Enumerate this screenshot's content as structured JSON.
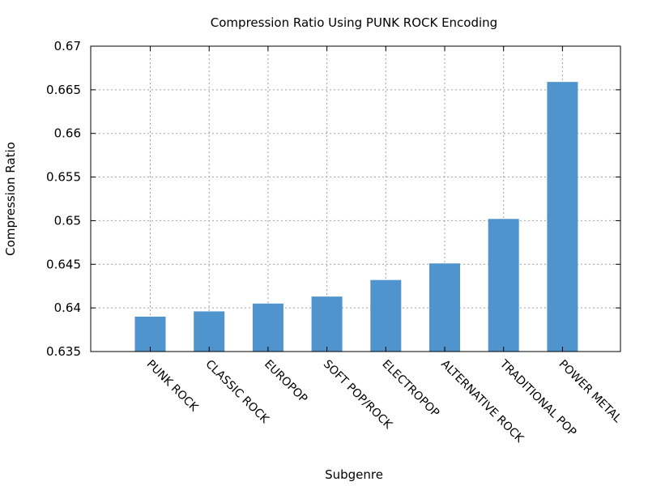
{
  "chart_data": {
    "type": "bar",
    "title": "Compression Ratio Using PUNK ROCK Encoding",
    "xlabel": "Subgenre",
    "ylabel": "Compression Ratio",
    "categories": [
      "PUNK ROCK",
      "CLASSIC ROCK",
      "EUROPOP",
      "SOFT POP/ROCK",
      "ELECTROPOP",
      "ALTERNATIVE ROCK",
      "TRADITIONAL POP",
      "POWER METAL"
    ],
    "values": [
      0.639,
      0.6396,
      0.6405,
      0.6413,
      0.6432,
      0.6451,
      0.6502,
      0.6659
    ],
    "ylim": [
      0.635,
      0.67
    ],
    "yticks": [
      "0.635",
      "0.64",
      "0.645",
      "0.65",
      "0.655",
      "0.66",
      "0.665",
      "0.67"
    ],
    "grid": true,
    "bar_color": "#4f94cd"
  }
}
